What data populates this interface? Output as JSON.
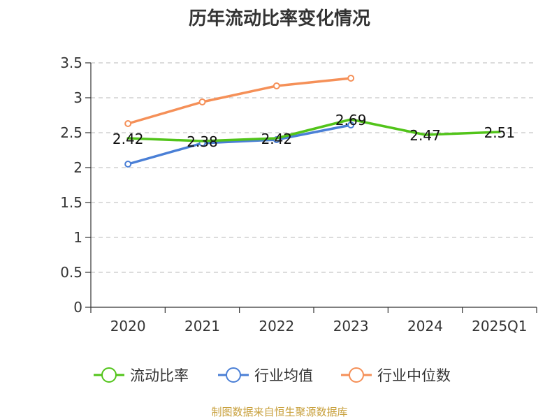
{
  "chart_data": {
    "type": "line",
    "title": "历年流动比率变化情况",
    "categories": [
      "2020",
      "2021",
      "2022",
      "2023",
      "2024",
      "2025Q1"
    ],
    "ylim": [
      0,
      3.5
    ],
    "yticks": [
      0,
      0.5,
      1,
      1.5,
      2,
      2.5,
      3,
      3.5
    ],
    "ytick_labels": [
      "0",
      "0.5",
      "1",
      "1.5",
      "2",
      "2.5",
      "3",
      "3.5"
    ],
    "grid": true,
    "legend_position": "bottom",
    "series": [
      {
        "name": "流动比率",
        "color": "#52c41a",
        "values": [
          2.42,
          2.38,
          2.42,
          2.69,
          2.47,
          2.51
        ],
        "labels": [
          "2.42",
          "2.38",
          "2.42",
          "2.69",
          "2.47",
          "2.51"
        ]
      },
      {
        "name": "行业均值",
        "color": "#4a7fd6",
        "values": [
          2.05,
          2.35,
          2.4,
          2.61,
          null,
          null
        ]
      },
      {
        "name": "行业中位数",
        "color": "#f59058",
        "values": [
          2.63,
          2.94,
          3.17,
          3.28,
          null,
          null
        ]
      }
    ]
  },
  "footer": {
    "source": "制图数据来自恒生聚源数据库"
  }
}
